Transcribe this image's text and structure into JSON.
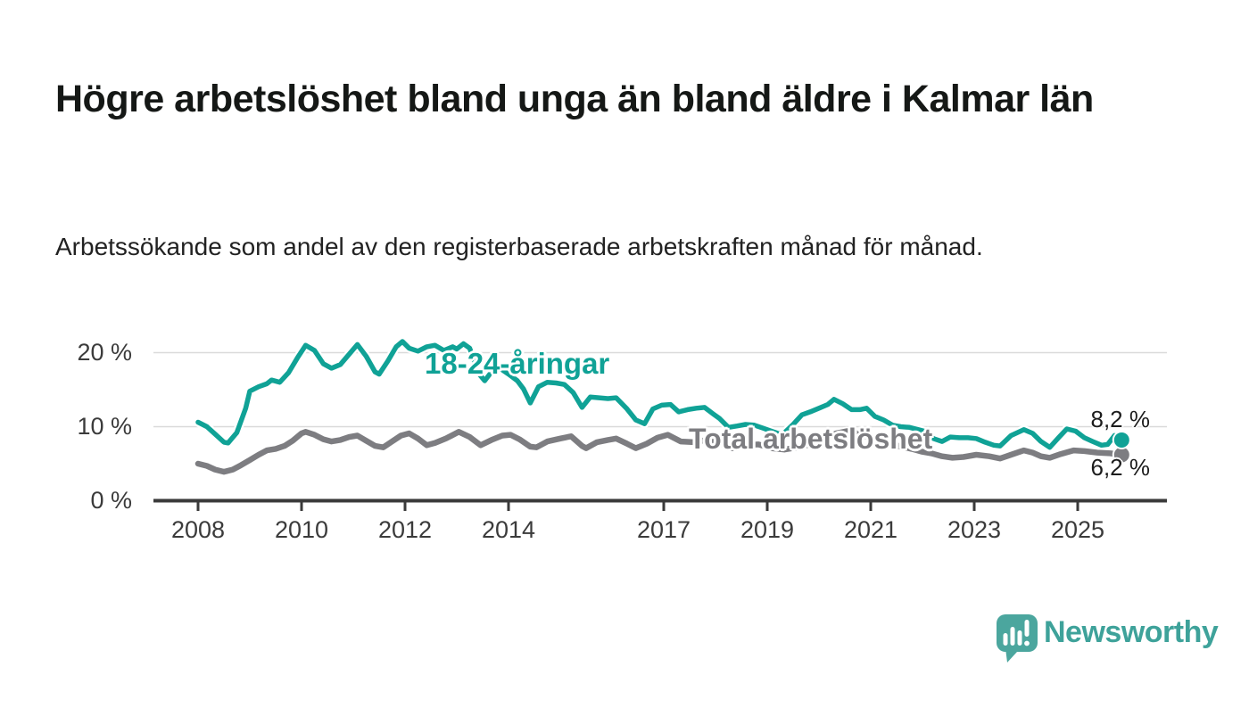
{
  "title": "Högre arbetslöshet bland unga än bland äldre i Kalmar län",
  "subtitle": "Arbetssökande som andel av den registerbaserade arbetskraften månad för månad.",
  "branding": {
    "wordmark": "Newsworthy",
    "icon": "bar-chart-speech-bubble-icon"
  },
  "colors": {
    "young_line": "#10a296",
    "total_line": "#7d7d81",
    "axis": "#3a3a3a",
    "grid": "#dadada",
    "title_text": "#151816",
    "body_text": "#222222",
    "brand_teal": "#4ba69e"
  },
  "chart_data": {
    "type": "line",
    "title": "Högre arbetslöshet bland unga än bland äldre i Kalmar län",
    "subtitle": "Arbetssökande som andel av den registerbaserade arbetskraften månad för månad.",
    "unit": "%",
    "grid": "horizontal",
    "legend": "inline-labels",
    "x_axis": {
      "ticks": [
        2008,
        2010,
        2012,
        2014,
        2017,
        2019,
        2021,
        2023,
        2025
      ],
      "range": [
        2007.1,
        2026.7
      ]
    },
    "y_axis": {
      "ticks": [
        0,
        10,
        20
      ],
      "tick_labels": [
        "0 %",
        "10 %",
        "20 %"
      ],
      "range": [
        0,
        23
      ]
    },
    "series": [
      {
        "name": "18-24-åringar",
        "color": "#10a296",
        "end_value": 8.2,
        "end_label": "8,2 %",
        "points": [
          [
            2008.0,
            10.6
          ],
          [
            2008.17,
            10.0
          ],
          [
            2008.33,
            9.0
          ],
          [
            2008.5,
            7.9
          ],
          [
            2008.58,
            7.8
          ],
          [
            2008.75,
            9.2
          ],
          [
            2008.92,
            12.5
          ],
          [
            2009.0,
            14.8
          ],
          [
            2009.17,
            15.4
          ],
          [
            2009.33,
            15.8
          ],
          [
            2009.42,
            16.3
          ],
          [
            2009.58,
            16.0
          ],
          [
            2009.75,
            17.3
          ],
          [
            2009.92,
            19.3
          ],
          [
            2010.08,
            21.0
          ],
          [
            2010.25,
            20.3
          ],
          [
            2010.42,
            18.5
          ],
          [
            2010.58,
            17.9
          ],
          [
            2010.75,
            18.4
          ],
          [
            2010.92,
            19.8
          ],
          [
            2011.08,
            21.1
          ],
          [
            2011.25,
            19.5
          ],
          [
            2011.42,
            17.4
          ],
          [
            2011.5,
            17.1
          ],
          [
            2011.67,
            18.9
          ],
          [
            2011.83,
            20.8
          ],
          [
            2011.95,
            21.5
          ],
          [
            2012.08,
            20.6
          ],
          [
            2012.25,
            20.2
          ],
          [
            2012.42,
            20.8
          ],
          [
            2012.58,
            21.0
          ],
          [
            2012.75,
            20.3
          ],
          [
            2012.92,
            20.8
          ],
          [
            2013.0,
            20.5
          ],
          [
            2013.13,
            21.2
          ],
          [
            2013.25,
            20.6
          ],
          [
            2013.42,
            17.2
          ],
          [
            2013.54,
            16.2
          ],
          [
            2013.67,
            17.4
          ],
          [
            2013.83,
            17.9
          ],
          [
            2014.0,
            17.1
          ],
          [
            2014.17,
            16.2
          ],
          [
            2014.29,
            15.1
          ],
          [
            2014.42,
            13.2
          ],
          [
            2014.58,
            15.4
          ],
          [
            2014.75,
            16.0
          ],
          [
            2014.92,
            15.9
          ],
          [
            2015.08,
            15.7
          ],
          [
            2015.25,
            14.6
          ],
          [
            2015.42,
            12.6
          ],
          [
            2015.58,
            14.0
          ],
          [
            2015.75,
            13.9
          ],
          [
            2015.92,
            13.8
          ],
          [
            2016.08,
            13.9
          ],
          [
            2016.29,
            12.4
          ],
          [
            2016.46,
            10.9
          ],
          [
            2016.63,
            10.4
          ],
          [
            2016.79,
            12.4
          ],
          [
            2016.96,
            12.9
          ],
          [
            2017.13,
            13.0
          ],
          [
            2017.29,
            12.0
          ],
          [
            2017.46,
            12.3
          ],
          [
            2017.63,
            12.5
          ],
          [
            2017.79,
            12.6
          ],
          [
            2017.96,
            11.7
          ],
          [
            2018.08,
            11.1
          ],
          [
            2018.25,
            9.9
          ],
          [
            2018.42,
            10.1
          ],
          [
            2018.58,
            10.3
          ],
          [
            2018.75,
            10.2
          ],
          [
            2018.92,
            9.8
          ],
          [
            2019.08,
            9.4
          ],
          [
            2019.29,
            8.9
          ],
          [
            2019.5,
            10.3
          ],
          [
            2019.67,
            11.6
          ],
          [
            2019.83,
            12.0
          ],
          [
            2020.0,
            12.5
          ],
          [
            2020.17,
            13.0
          ],
          [
            2020.29,
            13.7
          ],
          [
            2020.46,
            13.1
          ],
          [
            2020.63,
            12.3
          ],
          [
            2020.79,
            12.3
          ],
          [
            2020.92,
            12.5
          ],
          [
            2021.08,
            11.4
          ],
          [
            2021.25,
            10.9
          ],
          [
            2021.42,
            10.2
          ],
          [
            2021.58,
            10.0
          ],
          [
            2021.75,
            9.9
          ],
          [
            2021.92,
            9.6
          ],
          [
            2022.08,
            9.3
          ],
          [
            2022.21,
            8.4
          ],
          [
            2022.38,
            8.0
          ],
          [
            2022.54,
            8.6
          ],
          [
            2022.71,
            8.5
          ],
          [
            2022.88,
            8.5
          ],
          [
            2023.04,
            8.4
          ],
          [
            2023.21,
            7.9
          ],
          [
            2023.38,
            7.5
          ],
          [
            2023.5,
            7.4
          ],
          [
            2023.71,
            8.8
          ],
          [
            2023.96,
            9.6
          ],
          [
            2024.13,
            9.1
          ],
          [
            2024.29,
            8.0
          ],
          [
            2024.46,
            7.2
          ],
          [
            2024.63,
            8.5
          ],
          [
            2024.79,
            9.7
          ],
          [
            2024.96,
            9.4
          ],
          [
            2025.13,
            8.5
          ],
          [
            2025.29,
            8.0
          ],
          [
            2025.46,
            7.5
          ],
          [
            2025.58,
            7.6
          ],
          [
            2025.71,
            8.8
          ],
          [
            2025.85,
            8.2
          ]
        ]
      },
      {
        "name": "Total arbetslöshet",
        "color": "#7d7d81",
        "end_value": 6.2,
        "end_label": "6,2 %",
        "points": [
          [
            2008.0,
            5.0
          ],
          [
            2008.17,
            4.7
          ],
          [
            2008.33,
            4.2
          ],
          [
            2008.5,
            3.9
          ],
          [
            2008.67,
            4.2
          ],
          [
            2008.83,
            4.8
          ],
          [
            2009.0,
            5.5
          ],
          [
            2009.17,
            6.2
          ],
          [
            2009.33,
            6.8
          ],
          [
            2009.5,
            7.0
          ],
          [
            2009.67,
            7.4
          ],
          [
            2009.83,
            8.1
          ],
          [
            2010.0,
            9.1
          ],
          [
            2010.08,
            9.3
          ],
          [
            2010.25,
            8.9
          ],
          [
            2010.42,
            8.3
          ],
          [
            2010.58,
            8.0
          ],
          [
            2010.75,
            8.2
          ],
          [
            2010.92,
            8.6
          ],
          [
            2011.08,
            8.8
          ],
          [
            2011.25,
            8.1
          ],
          [
            2011.42,
            7.4
          ],
          [
            2011.58,
            7.2
          ],
          [
            2011.75,
            8.0
          ],
          [
            2011.92,
            8.8
          ],
          [
            2012.08,
            9.1
          ],
          [
            2012.25,
            8.4
          ],
          [
            2012.42,
            7.5
          ],
          [
            2012.58,
            7.8
          ],
          [
            2012.79,
            8.4
          ],
          [
            2013.04,
            9.3
          ],
          [
            2013.25,
            8.6
          ],
          [
            2013.46,
            7.5
          ],
          [
            2013.67,
            8.2
          ],
          [
            2013.88,
            8.8
          ],
          [
            2014.04,
            8.9
          ],
          [
            2014.21,
            8.3
          ],
          [
            2014.42,
            7.3
          ],
          [
            2014.54,
            7.2
          ],
          [
            2014.75,
            8.0
          ],
          [
            2015.0,
            8.4
          ],
          [
            2015.21,
            8.7
          ],
          [
            2015.42,
            7.4
          ],
          [
            2015.5,
            7.1
          ],
          [
            2015.71,
            7.9
          ],
          [
            2015.92,
            8.2
          ],
          [
            2016.08,
            8.4
          ],
          [
            2016.29,
            7.7
          ],
          [
            2016.46,
            7.1
          ],
          [
            2016.67,
            7.7
          ],
          [
            2016.88,
            8.5
          ],
          [
            2017.08,
            8.9
          ],
          [
            2017.33,
            8.0
          ],
          [
            2017.58,
            7.9
          ],
          [
            2017.83,
            8.2
          ],
          [
            2018.08,
            7.8
          ],
          [
            2018.33,
            7.1
          ],
          [
            2018.58,
            7.5
          ],
          [
            2018.83,
            7.6
          ],
          [
            2019.08,
            7.1
          ],
          [
            2019.33,
            6.9
          ],
          [
            2019.58,
            7.2
          ],
          [
            2019.83,
            7.6
          ],
          [
            2020.08,
            8.2
          ],
          [
            2020.33,
            9.1
          ],
          [
            2020.54,
            9.4
          ],
          [
            2020.79,
            9.0
          ],
          [
            2021.04,
            8.4
          ],
          [
            2021.29,
            7.9
          ],
          [
            2021.54,
            7.4
          ],
          [
            2021.79,
            7.0
          ],
          [
            2022.0,
            6.6
          ],
          [
            2022.17,
            6.4
          ],
          [
            2022.38,
            6.0
          ],
          [
            2022.58,
            5.8
          ],
          [
            2022.79,
            5.9
          ],
          [
            2023.04,
            6.2
          ],
          [
            2023.29,
            6.0
          ],
          [
            2023.5,
            5.7
          ],
          [
            2023.71,
            6.2
          ],
          [
            2023.96,
            6.8
          ],
          [
            2024.13,
            6.5
          ],
          [
            2024.29,
            6.0
          ],
          [
            2024.46,
            5.8
          ],
          [
            2024.67,
            6.3
          ],
          [
            2024.92,
            6.8
          ],
          [
            2025.13,
            6.7
          ],
          [
            2025.38,
            6.5
          ],
          [
            2025.63,
            6.4
          ],
          [
            2025.85,
            6.2
          ]
        ]
      }
    ]
  }
}
